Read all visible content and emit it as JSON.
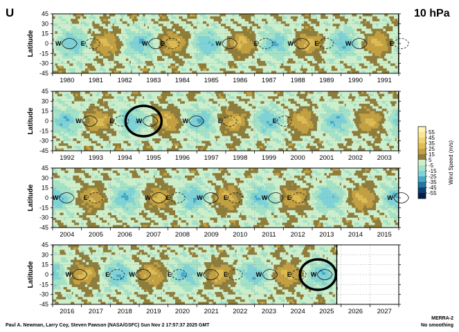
{
  "header": {
    "variable": "U",
    "level": "10 hPa"
  },
  "chart_data": {
    "type": "heatmap",
    "ylabel": "Latitude",
    "lat_ticks": [
      45,
      30,
      15,
      0,
      -15,
      -30,
      -45
    ],
    "panels": [
      {
        "start_year": 1980,
        "years": [
          "1980",
          "1981",
          "1982",
          "1983",
          "1984",
          "1985",
          "1986",
          "1987",
          "1988",
          "1989",
          "1990",
          "1991"
        ],
        "data_end": 1991.99,
        "equatorial_phases": [
          {
            "year": 1980.2,
            "phase": "W"
          },
          {
            "year": 1981.05,
            "phase": "E"
          },
          {
            "year": 1983.2,
            "phase": "W"
          },
          {
            "year": 1983.8,
            "phase": "E"
          },
          {
            "year": 1985.75,
            "phase": "W"
          },
          {
            "year": 1987.05,
            "phase": "E"
          },
          {
            "year": 1988.25,
            "phase": "W"
          },
          {
            "year": 1989.15,
            "phase": "E"
          },
          {
            "year": 1990.25,
            "phase": "W"
          },
          {
            "year": 1991.75,
            "phase": "E"
          }
        ]
      },
      {
        "start_year": 1992,
        "years": [
          "1992",
          "1993",
          "1994",
          "1995",
          "1996",
          "1997",
          "1998",
          "1999",
          "2000",
          "2001",
          "2002",
          "2003"
        ],
        "data_end": 2003.99,
        "equatorial_phases": [
          {
            "year": 1992.9,
            "phase": "W"
          },
          {
            "year": 1994.05,
            "phase": "E"
          },
          {
            "year": 1995.0,
            "phase": "W"
          },
          {
            "year": 1996.6,
            "phase": "W"
          },
          {
            "year": 1997.8,
            "phase": "E"
          },
          {
            "year": 1999.7,
            "phase": "E"
          }
        ]
      },
      {
        "start_year": 2004,
        "years": [
          "2004",
          "2005",
          "2006",
          "2007",
          "2008",
          "2009",
          "2010",
          "2011",
          "2012",
          "2013",
          "2014",
          "2015"
        ],
        "data_end": 2015.99,
        "equatorial_phases": [
          {
            "year": 2004.1,
            "phase": "W"
          },
          {
            "year": 2005.15,
            "phase": "E"
          },
          {
            "year": 2007.3,
            "phase": "W"
          },
          {
            "year": 2008.0,
            "phase": "E"
          },
          {
            "year": 2009.1,
            "phase": "W"
          },
          {
            "year": 2010.0,
            "phase": "E"
          },
          {
            "year": 2011.35,
            "phase": "W"
          },
          {
            "year": 2012.2,
            "phase": "E"
          },
          {
            "year": 2015.7,
            "phase": "W"
          }
        ]
      },
      {
        "start_year": 2016,
        "years": [
          "2016",
          "2017",
          "2018",
          "2019",
          "2020",
          "2021",
          "2022",
          "2023",
          "2024",
          "2025",
          "2026",
          "2027"
        ],
        "data_end": 2025.85,
        "equatorial_phases": [
          {
            "year": 2016.55,
            "phase": "W"
          },
          {
            "year": 2017.9,
            "phase": "E"
          },
          {
            "year": 2018.75,
            "phase": "W"
          },
          {
            "year": 2020.05,
            "phase": "E"
          },
          {
            "year": 2021.1,
            "phase": "W"
          },
          {
            "year": 2022.0,
            "phase": "E"
          },
          {
            "year": 2023.15,
            "phase": "W"
          },
          {
            "year": 2024.2,
            "phase": "E"
          },
          {
            "year": 2025.05,
            "phase": "W"
          }
        ]
      }
    ],
    "highlight_circles": [
      {
        "panel": 1,
        "year": 1995.15,
        "lat": 0
      },
      {
        "panel": 3,
        "year": 2025.2,
        "lat": 0
      }
    ],
    "colorbar": {
      "label": "Wind Speed (m/s)",
      "levels": [
        55,
        45,
        35,
        25,
        15,
        5,
        -5,
        -15,
        -25,
        -35,
        -45,
        -55
      ],
      "colors": [
        "#fff3b8",
        "#fbe594",
        "#efd36f",
        "#dfbd53",
        "#c2a043",
        "#8e7d3a",
        "#cdeecb",
        "#a4e2c8",
        "#7fd2d6",
        "#45a9c6",
        "#2076a3",
        "#0c3f73",
        "#081e4a"
      ]
    },
    "source": "MERRA-2",
    "smoothing": "No smoothing",
    "credit": "Paul A. Newman, Larry Coy, Steven Pawson (NASA/GSFC) Sun Nov  2 17:57:37 2025 GMT"
  }
}
